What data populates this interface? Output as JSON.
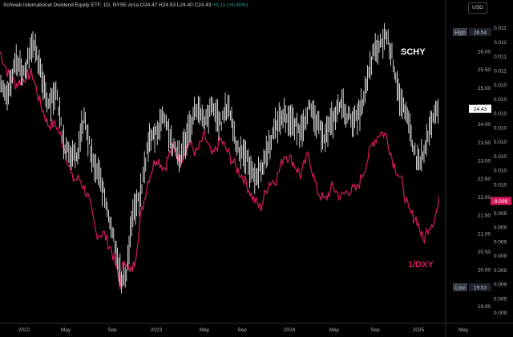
{
  "header": {
    "symbol": "Schwab International Dividend Equity ETF, 1D, NYSE Arca",
    "ohlc": "O24.47 H24.53 L24.40 C24.43",
    "change": "+0.11 (+0.45%)"
  },
  "currency": "USD",
  "colors": {
    "schy": "#ffffff",
    "dxy": "#d81b60",
    "background": "#000000",
    "axis_text": "#b2b5be"
  },
  "chart_data": {
    "type": "line",
    "x_ticks": [
      "2022",
      "May",
      "Sep",
      "2023",
      "May",
      "Sep",
      "2024",
      "May",
      "Sep",
      "2025",
      "May"
    ],
    "left_axis": {
      "ticks": [
        "26.00",
        "25.50",
        "25.00",
        "24.50",
        "24.00",
        "23.50",
        "23.00",
        "22.50",
        "22.00",
        "21.50",
        "21.00",
        "20.50",
        "20.00",
        "19.50",
        "19.00"
      ],
      "range": [
        19.0,
        26.54
      ]
    },
    "right_axis": {
      "ticks": [
        "0.011",
        "0.011",
        "0.011",
        "0.011",
        "0.010",
        "0.010",
        "0.010",
        "0.010",
        "0.010",
        "0.010",
        "0.010",
        "0.010",
        "0.010",
        "0.009",
        "0.009",
        "0.009",
        "0.009",
        "0.009",
        "0.009",
        "0.009",
        "0.009"
      ]
    },
    "markers": {
      "high": {
        "label": "High",
        "value": "26.54"
      },
      "low": {
        "label": "Low",
        "value": "19.53"
      },
      "schy_last": {
        "value": "24.43"
      },
      "dxy_last": {
        "value": "0.009"
      }
    },
    "series": [
      {
        "name": "SCHY",
        "style": "bars",
        "values": [
          [
            0,
            25.3
          ],
          [
            10,
            24.8
          ],
          [
            20,
            25.8
          ],
          [
            30,
            25.4
          ],
          [
            40,
            26.3
          ],
          [
            50,
            25.5
          ],
          [
            60,
            24.6
          ],
          [
            70,
            24.9
          ],
          [
            80,
            23.5
          ],
          [
            95,
            23.0
          ],
          [
            105,
            24.2
          ],
          [
            115,
            23.0
          ],
          [
            125,
            22.5
          ],
          [
            135,
            21.6
          ],
          [
            145,
            20.6
          ],
          [
            152,
            19.6
          ],
          [
            158,
            20.0
          ],
          [
            165,
            21.5
          ],
          [
            175,
            22.0
          ],
          [
            185,
            23.5
          ],
          [
            195,
            23.8
          ],
          [
            205,
            24.3
          ],
          [
            215,
            23.4
          ],
          [
            225,
            23.1
          ],
          [
            235,
            23.8
          ],
          [
            245,
            24.5
          ],
          [
            255,
            24.0
          ],
          [
            265,
            24.5
          ],
          [
            275,
            24.0
          ],
          [
            285,
            24.6
          ],
          [
            295,
            23.4
          ],
          [
            305,
            23.2
          ],
          [
            315,
            22.6
          ],
          [
            325,
            22.7
          ],
          [
            335,
            23.4
          ],
          [
            345,
            24.0
          ],
          [
            355,
            24.3
          ],
          [
            365,
            24.0
          ],
          [
            375,
            23.8
          ],
          [
            385,
            24.5
          ],
          [
            395,
            24.0
          ],
          [
            405,
            23.7
          ],
          [
            415,
            24.1
          ],
          [
            425,
            24.6
          ],
          [
            435,
            24.2
          ],
          [
            445,
            24.1
          ],
          [
            455,
            24.8
          ],
          [
            465,
            25.9
          ],
          [
            475,
            26.2
          ],
          [
            482,
            26.5
          ],
          [
            490,
            25.8
          ],
          [
            500,
            24.6
          ],
          [
            510,
            24.0
          ],
          [
            520,
            23.0
          ],
          [
            528,
            23.1
          ],
          [
            535,
            23.8
          ],
          [
            542,
            24.2
          ],
          [
            548,
            24.43
          ]
        ]
      },
      {
        "name": "1/DXY",
        "style": "line",
        "values": [
          [
            0,
            26.0
          ],
          [
            10,
            25.4
          ],
          [
            20,
            25.1
          ],
          [
            30,
            25.3
          ],
          [
            40,
            25.4
          ],
          [
            50,
            24.6
          ],
          [
            60,
            24.0
          ],
          [
            70,
            24.0
          ],
          [
            80,
            23.4
          ],
          [
            90,
            22.5
          ],
          [
            100,
            22.5
          ],
          [
            110,
            22.0
          ],
          [
            120,
            21.0
          ],
          [
            130,
            21.0
          ],
          [
            140,
            20.5
          ],
          [
            150,
            19.6
          ],
          [
            155,
            20.4
          ],
          [
            162,
            19.9
          ],
          [
            168,
            20.2
          ],
          [
            175,
            21.4
          ],
          [
            185,
            22.5
          ],
          [
            195,
            23.1
          ],
          [
            205,
            22.8
          ],
          [
            215,
            23.4
          ],
          [
            225,
            23.0
          ],
          [
            235,
            23.5
          ],
          [
            245,
            23.2
          ],
          [
            255,
            23.7
          ],
          [
            265,
            23.1
          ],
          [
            275,
            23.6
          ],
          [
            285,
            23.2
          ],
          [
            295,
            22.8
          ],
          [
            305,
            22.5
          ],
          [
            315,
            22.0
          ],
          [
            325,
            21.7
          ],
          [
            335,
            22.4
          ],
          [
            345,
            22.5
          ],
          [
            355,
            23.2
          ],
          [
            365,
            23.0
          ],
          [
            375,
            22.6
          ],
          [
            385,
            23.2
          ],
          [
            395,
            22.2
          ],
          [
            405,
            21.9
          ],
          [
            415,
            22.3
          ],
          [
            425,
            22.0
          ],
          [
            435,
            22.2
          ],
          [
            445,
            22.2
          ],
          [
            455,
            22.8
          ],
          [
            465,
            23.5
          ],
          [
            475,
            23.8
          ],
          [
            482,
            23.7
          ],
          [
            490,
            23.0
          ],
          [
            500,
            22.5
          ],
          [
            510,
            21.6
          ],
          [
            520,
            21.4
          ],
          [
            528,
            20.8
          ],
          [
            535,
            21.2
          ],
          [
            542,
            21.4
          ],
          [
            548,
            21.9
          ]
        ]
      }
    ]
  },
  "labels": {
    "schy": "SCHY",
    "dxy": "1/DXY"
  }
}
